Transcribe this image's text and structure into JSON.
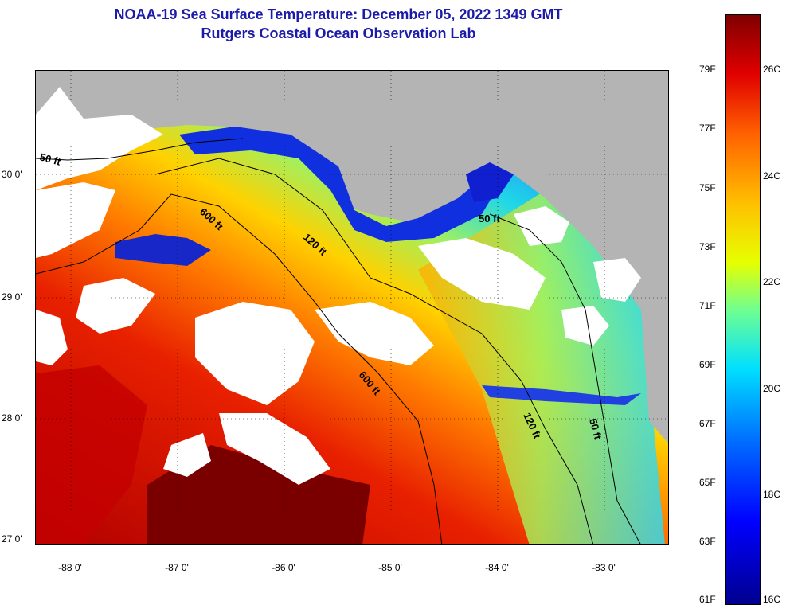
{
  "header": {
    "title_line1": "NOAA-19 Sea Surface Temperature:  December 05, 2022 1349 GMT",
    "title_line2": "Rutgers Coastal Ocean Observation Lab"
  },
  "map": {
    "latitude_labels": [
      "30 0'",
      "29 0'",
      "28 0'",
      "27 0'"
    ],
    "longitude_labels": [
      "-88 0'",
      "-87 0'",
      "-86 0'",
      "-85 0'",
      "-84 0'",
      "-83 0'"
    ],
    "depth_contours": [
      "50 ft",
      "600 ft",
      "120 ft",
      "50 ft",
      "600 ft",
      "120 ft",
      "50 ft"
    ],
    "colors": {
      "land": "#b4b4b4",
      "cloud_mask": "#ffffff",
      "warm_water": "#e01400",
      "cool_water": "#0020e0"
    }
  },
  "colorbar": {
    "fahrenheit": [
      "79F",
      "77F",
      "75F",
      "73F",
      "71F",
      "69F",
      "67F",
      "65F",
      "63F",
      "61F"
    ],
    "celsius": [
      "26C",
      "24C",
      "22C",
      "20C",
      "18C",
      "16C"
    ]
  }
}
